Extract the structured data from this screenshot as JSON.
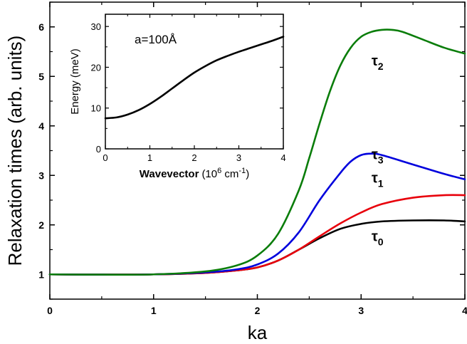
{
  "chart_data": {
    "type": "line",
    "xlabel": "ka",
    "ylabel": "Relaxation times (arb. units)",
    "xlim": [
      0,
      4
    ],
    "ylim": [
      0.5,
      6.5
    ],
    "xticks": [
      "0",
      "1",
      "2",
      "3",
      "4"
    ],
    "yticks": [
      "1",
      "2",
      "3",
      "4",
      "5",
      "6"
    ],
    "grid": false,
    "series": [
      {
        "name": "τ0",
        "label_base": "τ",
        "label_sub": "0",
        "color": "#000000",
        "x": [
          0,
          0.5,
          1.0,
          1.5,
          1.8,
          2.0,
          2.2,
          2.4,
          2.6,
          2.8,
          3.0,
          3.2,
          3.5,
          3.8,
          4.0
        ],
        "y": [
          1.0,
          0.995,
          1.0,
          1.03,
          1.08,
          1.14,
          1.28,
          1.5,
          1.73,
          1.92,
          2.02,
          2.07,
          2.09,
          2.09,
          2.07
        ],
        "label_at": [
          3.1,
          1.67
        ]
      },
      {
        "name": "τ1",
        "label_base": "τ",
        "label_sub": "1",
        "color": "#e8000b",
        "x": [
          0,
          0.5,
          1.0,
          1.5,
          1.8,
          2.0,
          2.2,
          2.4,
          2.6,
          2.8,
          3.0,
          3.2,
          3.5,
          3.8,
          4.0
        ],
        "y": [
          1.0,
          0.995,
          1.0,
          1.03,
          1.08,
          1.14,
          1.28,
          1.5,
          1.77,
          2.03,
          2.25,
          2.42,
          2.55,
          2.6,
          2.6
        ],
        "label_at": [
          3.1,
          2.85
        ]
      },
      {
        "name": "τ3",
        "label_base": "τ",
        "label_sub": "3",
        "color": "#0000dd",
        "x": [
          0,
          0.5,
          1.0,
          1.5,
          1.8,
          2.0,
          2.2,
          2.4,
          2.6,
          2.8,
          2.9,
          3.0,
          3.1,
          3.2,
          3.5,
          3.8,
          4.0
        ],
        "y": [
          1.0,
          0.995,
          1.0,
          1.04,
          1.1,
          1.2,
          1.42,
          1.85,
          2.5,
          3.05,
          3.28,
          3.41,
          3.44,
          3.41,
          3.22,
          3.03,
          2.92
        ],
        "label_at": [
          3.1,
          3.33
        ]
      },
      {
        "name": "τ2",
        "label_base": "τ",
        "label_sub": "2",
        "color": "#0a7d0a",
        "x": [
          0,
          0.5,
          1.0,
          1.5,
          1.8,
          2.0,
          2.2,
          2.4,
          2.5,
          2.6,
          2.7,
          2.8,
          2.9,
          3.0,
          3.1,
          3.2,
          3.3,
          3.4,
          3.6,
          3.8,
          4.0
        ],
        "y": [
          1.0,
          0.995,
          1.0,
          1.06,
          1.18,
          1.38,
          1.82,
          2.7,
          3.35,
          4.05,
          4.7,
          5.22,
          5.58,
          5.8,
          5.9,
          5.94,
          5.94,
          5.9,
          5.74,
          5.58,
          5.46
        ],
        "label_at": [
          3.1,
          5.22
        ]
      }
    ],
    "inset": {
      "type": "line",
      "xlabel_bold": "Wavevector",
      "xlabel_rest": "(10",
      "xlabel_sup1": "6",
      "xlabel_mid": " cm",
      "xlabel_sup2": "-1",
      "xlabel_end": ")",
      "ylabel": "Energy (meV)",
      "xlim": [
        0,
        4
      ],
      "ylim": [
        0,
        33
      ],
      "xticks": [
        "0",
        "1",
        "2",
        "3",
        "4"
      ],
      "yticks": [
        "0",
        "10",
        "20",
        "30"
      ],
      "annotation": "a=100Å",
      "series": [
        {
          "color": "#000000",
          "x": [
            0,
            0.25,
            0.5,
            0.75,
            1.0,
            1.25,
            1.5,
            1.75,
            2.0,
            2.25,
            2.5,
            2.75,
            3.0,
            3.25,
            3.5,
            3.75,
            4.0
          ],
          "y": [
            7.5,
            7.7,
            8.4,
            9.5,
            11.0,
            12.8,
            14.8,
            16.8,
            18.7,
            20.3,
            21.7,
            22.8,
            23.8,
            24.7,
            25.6,
            26.5,
            27.5
          ]
        }
      ]
    }
  }
}
